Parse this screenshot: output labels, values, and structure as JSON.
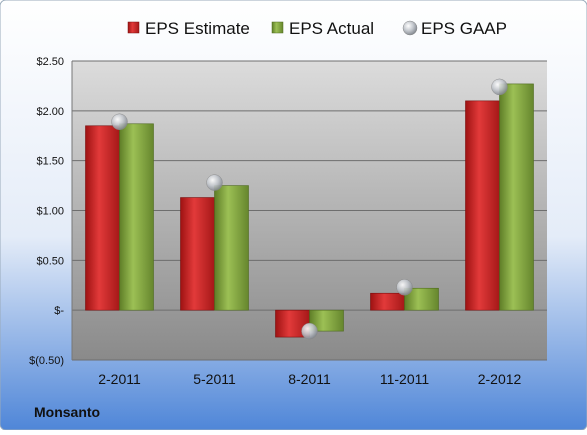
{
  "chart_data": {
    "type": "bar",
    "company": "Monsanto",
    "categories": [
      "2-2011",
      "5-2011",
      "8-2011",
      "11-2011",
      "2-2012"
    ],
    "series": [
      {
        "name": "EPS Estimate",
        "kind": "bar",
        "color": "#d42a2a",
        "values": [
          1.85,
          1.13,
          -0.27,
          0.17,
          2.1
        ]
      },
      {
        "name": "EPS Actual",
        "kind": "bar",
        "color": "#8aad44",
        "values": [
          1.87,
          1.25,
          -0.21,
          0.22,
          2.27
        ]
      },
      {
        "name": "EPS GAAP",
        "kind": "marker",
        "color": "#b8bcc4",
        "values": [
          1.89,
          1.28,
          -0.21,
          0.23,
          2.24
        ]
      }
    ],
    "ylim": [
      -0.5,
      2.5
    ],
    "yticks": [
      {
        "value": 2.5,
        "label": "$2.50"
      },
      {
        "value": 2.0,
        "label": "$2.00"
      },
      {
        "value": 1.5,
        "label": "$1.50"
      },
      {
        "value": 1.0,
        "label": "$1.00"
      },
      {
        "value": 0.5,
        "label": "$0.50"
      },
      {
        "value": 0.0,
        "label": "$-"
      },
      {
        "value": -0.5,
        "label": "$(0.50)"
      }
    ],
    "grid": true,
    "legend_position": "top"
  }
}
